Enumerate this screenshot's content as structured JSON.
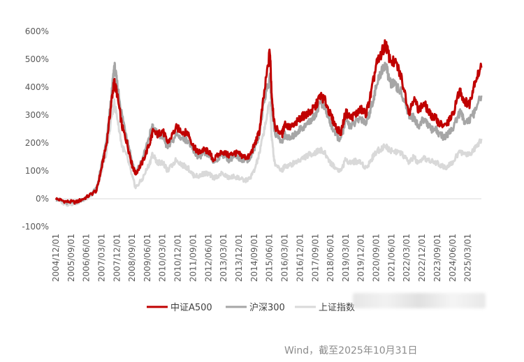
{
  "chart_data": {
    "type": "line",
    "title": "",
    "xlabel": "",
    "ylabel": "",
    "ylim": [
      -100,
      600
    ],
    "y_ticks": [
      "600%",
      "500%",
      "400%",
      "300%",
      "200%",
      "100%",
      "0%",
      "-100%"
    ],
    "y_tick_values": [
      600,
      500,
      400,
      300,
      200,
      100,
      0,
      -100
    ],
    "x_ticks": [
      "2004/12/01",
      "2005/09/01",
      "2006/06/01",
      "2007/03/01",
      "2007/12/01",
      "2008/09/01",
      "2009/06/01",
      "2010/03/01",
      "2010/12/01",
      "2011/09/01",
      "2012/06/01",
      "2013/03/01",
      "2013/12/01",
      "2014/09/01",
      "2015/06/01",
      "2016/03/01",
      "2016/12/01",
      "2017/09/01",
      "2018/06/01",
      "2019/03/01",
      "2019/12/01",
      "2020/09/01",
      "2021/06/01",
      "2022/03/01",
      "2022/12/01",
      "2023/09/01",
      "2024/06/01",
      "2025/03/01"
    ],
    "grid": false,
    "legend_position": "bottom",
    "x_dates": [
      "2004/12/01",
      "2005/06/01",
      "2005/12/01",
      "2006/06/01",
      "2006/12/01",
      "2007/03/01",
      "2007/06/01",
      "2007/09/01",
      "2007/10/15",
      "2007/12/01",
      "2008/03/01",
      "2008/06/01",
      "2008/09/01",
      "2008/11/01",
      "2009/03/01",
      "2009/07/15",
      "2009/09/01",
      "2009/12/01",
      "2010/03/01",
      "2010/06/01",
      "2010/11/01",
      "2011/03/01",
      "2011/06/01",
      "2011/09/01",
      "2011/12/01",
      "2012/03/01",
      "2012/06/01",
      "2012/09/01",
      "2013/02/01",
      "2013/06/01",
      "2013/09/01",
      "2013/12/01",
      "2014/03/01",
      "2014/06/01",
      "2014/09/01",
      "2014/12/01",
      "2015/03/01",
      "2015/06/10",
      "2015/07/10",
      "2015/09/01",
      "2016/01/15",
      "2016/03/01",
      "2016/06/01",
      "2016/09/01",
      "2016/12/01",
      "2017/03/01",
      "2017/06/01",
      "2017/09/01",
      "2017/12/01",
      "2018/03/01",
      "2018/06/01",
      "2018/09/01",
      "2018/12/01",
      "2019/03/01",
      "2019/06/01",
      "2019/09/01",
      "2019/12/01",
      "2020/03/01",
      "2020/06/01",
      "2020/09/01",
      "2020/12/01",
      "2021/02/15",
      "2021/05/01",
      "2021/09/01",
      "2021/12/01",
      "2022/04/15",
      "2022/07/01",
      "2022/10/01",
      "2023/01/15",
      "2023/05/01",
      "2023/08/01",
      "2023/10/01",
      "2024/01/15",
      "2024/04/01",
      "2024/06/01",
      "2024/10/08",
      "2025/01/01",
      "2025/04/01",
      "2025/07/01",
      "2025/10/31"
    ],
    "series": [
      {
        "name": "中证A500",
        "color": "#c00000",
        "values": [
          0,
          -10,
          -12,
          5,
          30,
          110,
          200,
          360,
          420,
          380,
          260,
          200,
          120,
          90,
          130,
          200,
          240,
          230,
          245,
          200,
          255,
          240,
          235,
          190,
          165,
          175,
          170,
          140,
          170,
          155,
          165,
          160,
          150,
          150,
          190,
          240,
          380,
          530,
          380,
          260,
          230,
          270,
          255,
          265,
          290,
          300,
          310,
          330,
          370,
          350,
          300,
          260,
          235,
          310,
          290,
          305,
          320,
          305,
          380,
          480,
          520,
          555,
          500,
          480,
          430,
          310,
          360,
          320,
          340,
          300,
          290,
          270,
          260,
          280,
          300,
          390,
          350,
          340,
          420,
          470
        ]
      },
      {
        "name": "沪深300",
        "color": "#a6a6a6",
        "values": [
          0,
          -15,
          -12,
          5,
          35,
          120,
          210,
          380,
          480,
          420,
          300,
          220,
          130,
          90,
          140,
          230,
          260,
          230,
          225,
          180,
          230,
          215,
          210,
          170,
          150,
          160,
          160,
          130,
          160,
          140,
          150,
          145,
          140,
          140,
          180,
          230,
          360,
          430,
          340,
          240,
          200,
          230,
          215,
          230,
          250,
          260,
          280,
          300,
          350,
          320,
          270,
          230,
          210,
          280,
          260,
          275,
          290,
          270,
          330,
          400,
          460,
          480,
          420,
          400,
          380,
          300,
          290,
          260,
          290,
          250,
          250,
          230,
          220,
          240,
          250,
          310,
          280,
          280,
          310,
          370
        ]
      },
      {
        "name": "上证指数",
        "color": "#d9d9d9",
        "values": [
          0,
          -20,
          -15,
          0,
          30,
          100,
          170,
          300,
          340,
          300,
          190,
          150,
          80,
          40,
          70,
          130,
          160,
          130,
          130,
          100,
          140,
          120,
          110,
          85,
          80,
          90,
          90,
          75,
          90,
          75,
          80,
          75,
          65,
          70,
          100,
          160,
          250,
          350,
          220,
          130,
          100,
          120,
          120,
          130,
          140,
          150,
          160,
          165,
          175,
          160,
          130,
          110,
          100,
          140,
          130,
          135,
          130,
          110,
          140,
          170,
          180,
          190,
          175,
          170,
          160,
          130,
          150,
          125,
          145,
          135,
          130,
          125,
          110,
          125,
          130,
          170,
          160,
          160,
          180,
          215
        ]
      }
    ]
  },
  "legend": {
    "items": [
      "中证A500",
      "沪深300",
      "上证指数"
    ]
  },
  "source_text": "Wind，截至2025年10月31日"
}
